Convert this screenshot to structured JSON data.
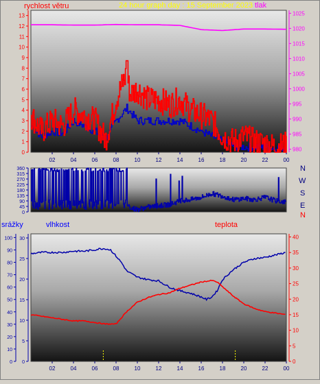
{
  "labels": {
    "wind_speed": "rychlost větru",
    "title": "24 hour graph day : 15 September 2023",
    "pressure": "tlak",
    "precip": "srážky",
    "humidity": "vlhkost",
    "temperature": "teplota",
    "compass": [
      "N",
      "W",
      "S",
      "E",
      "N"
    ]
  },
  "colors": {
    "wind": "#ff0000",
    "wind_avg": "#0000cc",
    "pressure": "#ff00ff",
    "direction": "#0000aa",
    "humidity": "#0000aa",
    "temperature": "#ff0000",
    "precip_marks": "#ffff00",
    "label_red": "#ff0000",
    "label_blue": "#0000ff",
    "label_yellow": "#ffff00",
    "label_magenta": "#ff00ff"
  },
  "chart_data": [
    {
      "type": "line",
      "name": "wind-pressure",
      "x_ticks": [
        "02",
        "04",
        "06",
        "08",
        "10",
        "12",
        "14",
        "16",
        "18",
        "20",
        "22",
        "00"
      ],
      "y_left_ticks": [
        "0",
        "1",
        "2",
        "3",
        "4",
        "5",
        "6",
        "7",
        "8",
        "9",
        "10",
        "11",
        "12",
        "13"
      ],
      "y_right_ticks": [
        "980",
        "985",
        "990",
        "995",
        "1000",
        "1005",
        "1010",
        "1015",
        "1020",
        "1025"
      ],
      "ylim_left": [
        0,
        13.5
      ],
      "ylim_right": [
        979,
        1026
      ],
      "series": [
        {
          "key": "pressure",
          "axis": "right",
          "x": [
            0,
            2,
            4,
            6,
            8,
            10,
            12,
            14,
            16,
            18,
            20,
            22,
            24
          ],
          "values": [
            1021.2,
            1021.2,
            1021.1,
            1021.1,
            1021.3,
            1021.2,
            1021.2,
            1021.0,
            1019.6,
            1019.3,
            1019.8,
            1019.8,
            1019.7
          ]
        },
        {
          "key": "wind",
          "axis": "left",
          "x": [
            0,
            1,
            2,
            3,
            4,
            5,
            6,
            7,
            7.5,
            8,
            8.5,
            9,
            9.3,
            10,
            11,
            12,
            13,
            14,
            15,
            16,
            17,
            18,
            19,
            20,
            21,
            22,
            23,
            24
          ],
          "values": [
            3.5,
            2.0,
            3.0,
            2.5,
            4.0,
            3.5,
            3.0,
            1.2,
            3.0,
            5.0,
            6.3,
            7.5,
            5.5,
            6.0,
            5.0,
            5.0,
            4.5,
            5.0,
            4.0,
            3.5,
            3.0,
            1.5,
            1.0,
            1.5,
            1.0,
            0.8,
            0.5,
            0.7
          ]
        },
        {
          "key": "wind_avg",
          "axis": "left",
          "x": [
            0,
            1,
            2,
            3,
            4,
            5,
            6,
            7,
            8,
            9,
            10,
            11,
            12,
            13,
            14,
            15,
            16,
            17,
            18,
            19,
            20,
            21,
            22,
            23,
            24
          ],
          "values": [
            2.5,
            1.5,
            2.0,
            1.8,
            3.0,
            2.5,
            2.0,
            1.2,
            3.0,
            4.2,
            3.0,
            3.0,
            3.0,
            3.0,
            3.0,
            2.5,
            2.0,
            1.5,
            1.0,
            0.6,
            0.5,
            0.5,
            0.5,
            0.4,
            0.5
          ]
        }
      ]
    },
    {
      "type": "line",
      "name": "wind-direction",
      "y_ticks": [
        "0",
        "45",
        "90",
        "135",
        "180",
        "225",
        "270",
        "315",
        "360"
      ],
      "ylim": [
        0,
        360
      ],
      "x": [
        0,
        0.5,
        1,
        1.5,
        2,
        2.5,
        3,
        3.5,
        4,
        4.5,
        5,
        5.5,
        6,
        6.5,
        7,
        7.5,
        8,
        8.5,
        9,
        9.5,
        10,
        11,
        12,
        13,
        14,
        15,
        16,
        17,
        18,
        19,
        20,
        21,
        22,
        23,
        24
      ],
      "values": [
        90,
        300,
        340,
        80,
        350,
        90,
        60,
        350,
        100,
        360,
        40,
        350,
        30,
        360,
        40,
        350,
        360,
        20,
        60,
        30,
        20,
        40,
        50,
        60,
        90,
        100,
        120,
        150,
        130,
        100,
        110,
        100,
        120,
        90,
        80
      ]
    },
    {
      "type": "line",
      "name": "humidity-temperature-precip",
      "x_ticks": [
        "02",
        "04",
        "06",
        "08",
        "10",
        "12",
        "14",
        "16",
        "18",
        "20",
        "22",
        "00"
      ],
      "y_left1_ticks": [
        "0",
        "10",
        "20",
        "30",
        "40",
        "50",
        "60",
        "70",
        "80",
        "90",
        "100"
      ],
      "y_left2_ticks": [
        "0",
        "5",
        "10",
        "15",
        "20",
        "25",
        "30"
      ],
      "y_right_ticks": [
        "0",
        "5",
        "10",
        "15",
        "20",
        "25",
        "30",
        "35",
        "40"
      ],
      "ylim_humidity": [
        0,
        103
      ],
      "ylim_temperature": [
        0,
        41
      ],
      "series": [
        {
          "key": "humidity",
          "x": [
            0,
            1,
            2,
            3,
            4,
            5,
            6,
            6.5,
            7,
            7.5,
            8,
            8.5,
            9,
            10,
            11,
            12,
            13,
            14,
            15,
            16,
            16.5,
            17,
            17.5,
            18,
            19,
            20,
            21,
            22,
            23,
            24
          ],
          "values": [
            87,
            88,
            88,
            88,
            89,
            89,
            90,
            91,
            91,
            90,
            85,
            80,
            73,
            68,
            66,
            65,
            60,
            57,
            55,
            52,
            50,
            52,
            57,
            66,
            74,
            80,
            83,
            84,
            86,
            88
          ]
        },
        {
          "key": "temperature",
          "x": [
            0,
            1,
            2,
            3,
            4,
            5,
            6,
            7,
            8,
            8.5,
            9,
            10,
            11,
            12,
            13,
            14,
            15,
            16,
            17,
            17.5,
            18,
            19,
            20,
            21,
            22,
            23,
            24
          ],
          "values": [
            15,
            14.5,
            14,
            13.5,
            13,
            13,
            12.5,
            12,
            12,
            14,
            16,
            19,
            20.5,
            21.5,
            22,
            23.5,
            24.5,
            25.5,
            26,
            25.5,
            24,
            21,
            18.5,
            17,
            16,
            15.5,
            15
          ]
        }
      ],
      "precip_marks_x": [
        6.8,
        19.2
      ]
    }
  ]
}
